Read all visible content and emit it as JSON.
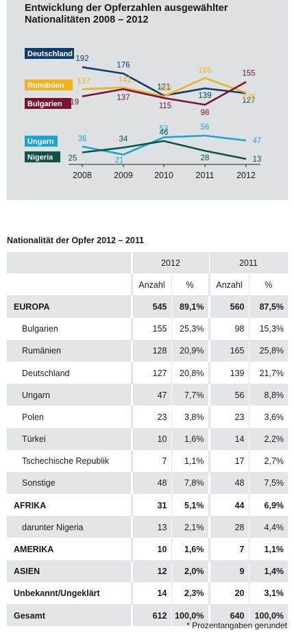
{
  "chart_data": {
    "type": "line",
    "title": "Entwicklung der Opferzahlen ausgewählter Nationalitäten 2008 – 2012",
    "x": [
      "2008",
      "2009",
      "2010",
      "2011",
      "2012"
    ],
    "series": [
      {
        "name": "Deutschland",
        "color": "#0e3d6b",
        "values": [
          192,
          176,
          121,
          139,
          127
        ]
      },
      {
        "name": "Rumänien",
        "color": "#f2b31a",
        "values": [
          137,
          141,
          119,
          165,
          128
        ]
      },
      {
        "name": "Bulgarien",
        "color": "#7a1433",
        "values": [
          119,
          137,
          115,
          98,
          155
        ]
      },
      {
        "name": "Ungarn",
        "color": "#1ea5cf",
        "values": [
          36,
          21,
          53,
          56,
          47
        ]
      },
      {
        "name": "Nigeria",
        "color": "#0c5445",
        "values": [
          25,
          34,
          46,
          28,
          13
        ]
      }
    ]
  },
  "table": {
    "title": "Nationalität der Opfer 2012 – 2011",
    "year_headers": [
      "2012",
      "2011"
    ],
    "subheaders": [
      "Anzahl",
      "%",
      "Anzahl",
      "%"
    ],
    "rows": [
      {
        "label": "EUROPA",
        "a12": "545",
        "p12": "89,1%",
        "a11": "560",
        "p11": "87,5%"
      },
      {
        "label": "Bulgarien",
        "a12": "155",
        "p12": "25,3%",
        "a11": "98",
        "p11": "15,3%"
      },
      {
        "label": "Rumänien",
        "a12": "128",
        "p12": "20,9%",
        "a11": "165",
        "p11": "25,8%"
      },
      {
        "label": "Deutschland",
        "a12": "127",
        "p12": "20,8%",
        "a11": "139",
        "p11": "21,7%"
      },
      {
        "label": "Ungarn",
        "a12": "47",
        "p12": "7,7%",
        "a11": "56",
        "p11": "8,8%"
      },
      {
        "label": "Polen",
        "a12": "23",
        "p12": "3,8%",
        "a11": "23",
        "p11": "3,6%"
      },
      {
        "label": "Türkei",
        "a12": "10",
        "p12": "1,6%",
        "a11": "14",
        "p11": "2,2%"
      },
      {
        "label": "Tschechische Republik",
        "a12": "7",
        "p12": "1,1%",
        "a11": "17",
        "p11": "2,7%"
      },
      {
        "label": "Sonstige",
        "a12": "48",
        "p12": "7,8%",
        "a11": "48",
        "p11": "7,5%"
      },
      {
        "label": "AFRIKA",
        "a12": "31",
        "p12": "5,1%",
        "a11": "44",
        "p11": "6,9%"
      },
      {
        "label": "darunter Nigeria",
        "a12": "13",
        "p12": "2,1%",
        "a11": "28",
        "p11": "4,4%"
      },
      {
        "label": "AMERIKA",
        "a12": "10",
        "p12": "1,6%",
        "a11": "7",
        "p11": "1,1%"
      },
      {
        "label": "ASIEN",
        "a12": "12",
        "p12": "2,0%",
        "a11": "9",
        "p11": "1,4%"
      },
      {
        "label": "Unbekannt/Ungeklärt",
        "a12": "14",
        "p12": "2,3%",
        "a11": "20",
        "p11": "3,1%"
      },
      {
        "label": "Gesamt",
        "a12": "612",
        "p12": "100,0%",
        "a11": "640",
        "p11": "100,0%"
      }
    ]
  },
  "footnote": "* Prozentangaben gerundet"
}
